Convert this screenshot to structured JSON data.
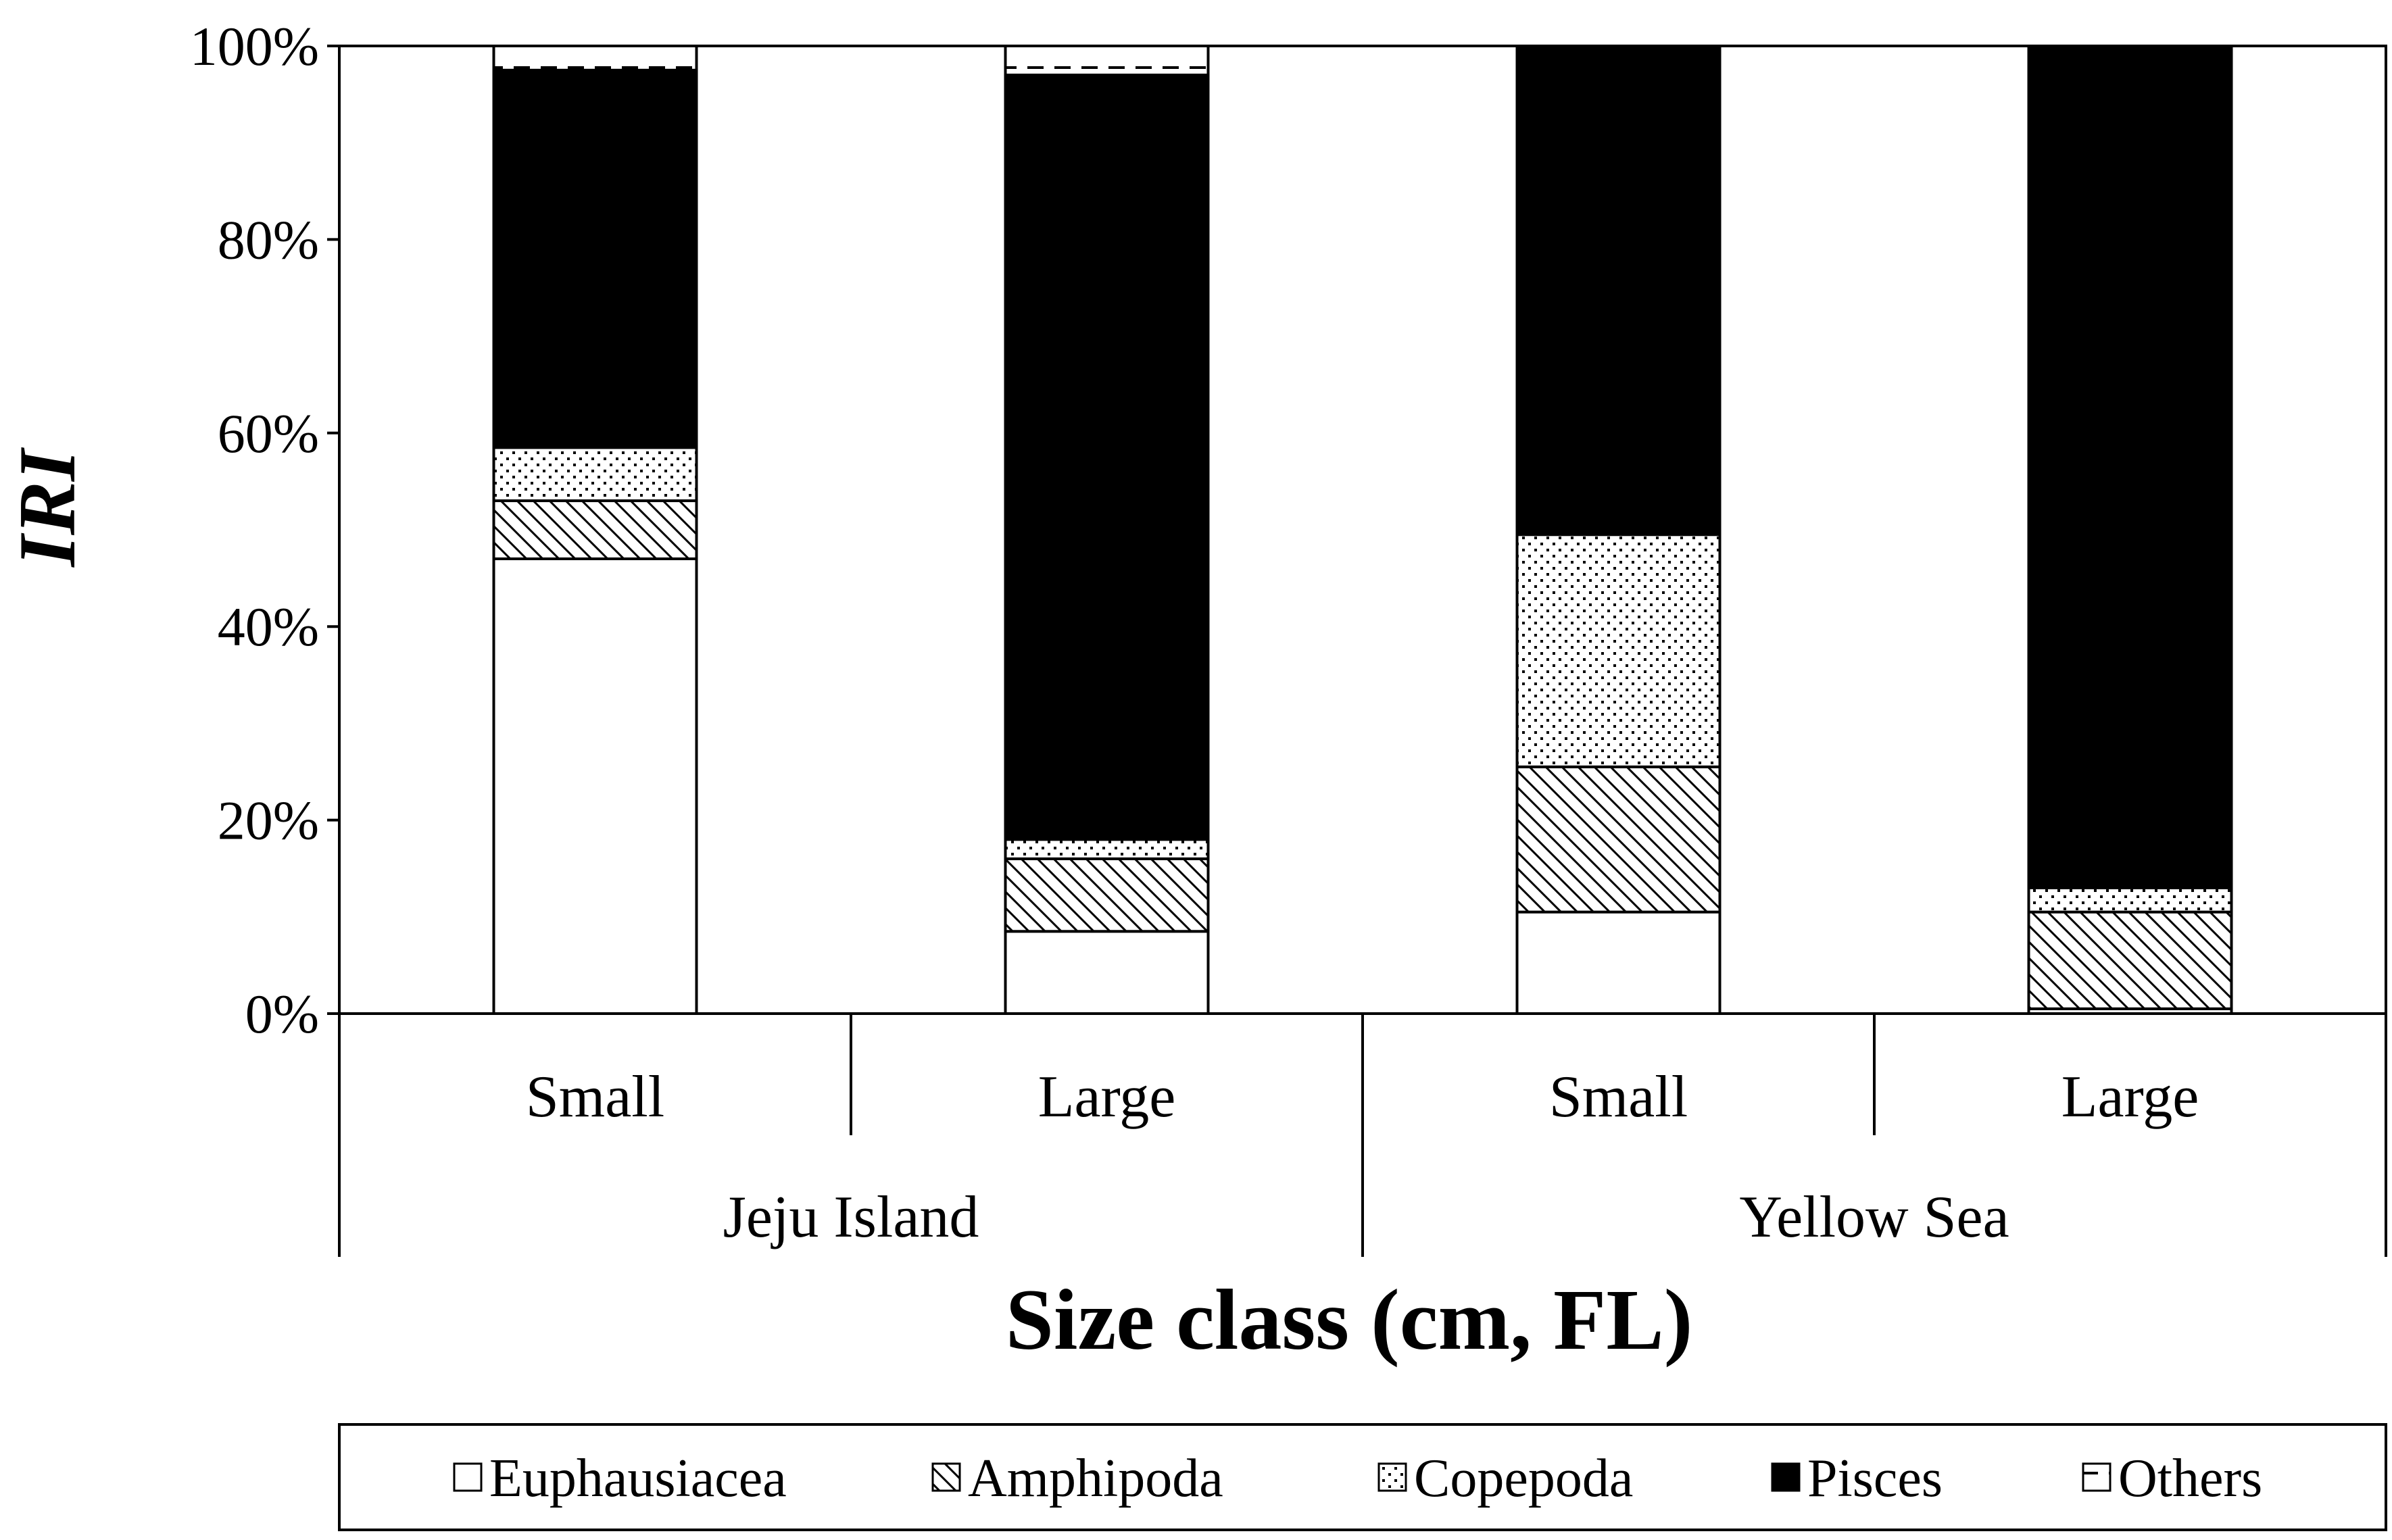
{
  "chart_data": {
    "type": "bar",
    "stacked": true,
    "percent_stacked": true,
    "xlabel": "Size class (cm, FL)",
    "ylabel": "IRI",
    "ylim": [
      0,
      100
    ],
    "yticks": [
      "0%",
      "20%",
      "40%",
      "60%",
      "80%",
      "100%"
    ],
    "ytick_values": [
      0,
      20,
      40,
      60,
      80,
      100
    ],
    "groups": [
      {
        "label": "Jeju Island",
        "categories": [
          "Small",
          "Large"
        ]
      },
      {
        "label": "Yellow Sea",
        "categories": [
          "Small",
          "Large"
        ]
      }
    ],
    "categories": [
      "Small",
      "Large",
      "Small",
      "Large"
    ],
    "series": [
      {
        "name": "Euphausiacea",
        "pattern": "white",
        "values": [
          47,
          8.5,
          10.5,
          0.5
        ]
      },
      {
        "name": "Amphipoda",
        "pattern": "hatch",
        "values": [
          6,
          7.5,
          15,
          10
        ]
      },
      {
        "name": "Copepoda",
        "pattern": "dots-sparse",
        "values": [
          5.5,
          2,
          24,
          2.5
        ]
      },
      {
        "name": "Pisces",
        "pattern": "black",
        "values": [
          39,
          79,
          50.5,
          87
        ]
      },
      {
        "name": "Others",
        "pattern": "dashed",
        "values": [
          2.5,
          3,
          0,
          0
        ]
      }
    ],
    "legend": {
      "position": "bottom",
      "border": true
    },
    "grid": false
  }
}
